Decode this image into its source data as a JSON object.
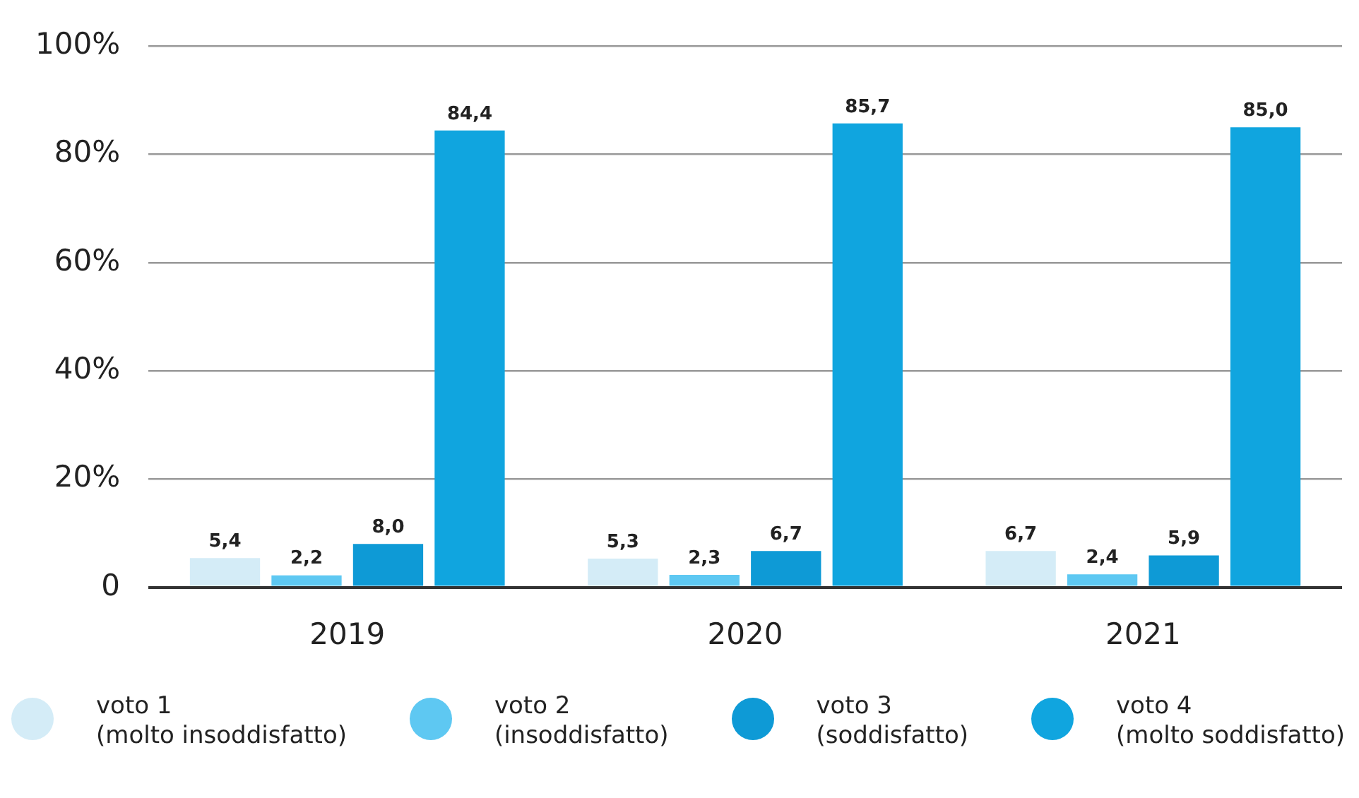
{
  "chart_data": {
    "type": "bar",
    "categories": [
      "2019",
      "2020",
      "2021"
    ],
    "series": [
      {
        "name": "voto 1\n(molto insoddisfatto)",
        "color": "#d4ecf7",
        "values": [
          5.4,
          5.3,
          6.7
        ],
        "value_labels": [
          "5,4",
          "5,3",
          "6,7"
        ]
      },
      {
        "name": "voto 2\n(insoddisfatto)",
        "color": "#5ec8f2",
        "values": [
          2.2,
          2.3,
          2.4
        ],
        "value_labels": [
          "2,2",
          "2,3",
          "2,4"
        ]
      },
      {
        "name": "voto 3\n(soddisfatto)",
        "color": "#0e9ad6",
        "values": [
          8.0,
          6.7,
          5.9
        ],
        "value_labels": [
          "8,0",
          "6,7",
          "5,9"
        ]
      },
      {
        "name": "voto 4\n(molto soddisfatto)",
        "color": "#10a5df",
        "values": [
          84.4,
          85.7,
          85.0
        ],
        "value_labels": [
          "84,4",
          "85,7",
          "85,0"
        ]
      }
    ],
    "ylim": [
      0,
      100
    ],
    "yticks": [
      {
        "value": 0,
        "label": "0"
      },
      {
        "value": 20,
        "label": "20%"
      },
      {
        "value": 40,
        "label": "40%"
      },
      {
        "value": 60,
        "label": "60%"
      },
      {
        "value": 80,
        "label": "80%"
      },
      {
        "value": 100,
        "label": "100%"
      }
    ],
    "grid": "y",
    "legend": "bottom"
  }
}
